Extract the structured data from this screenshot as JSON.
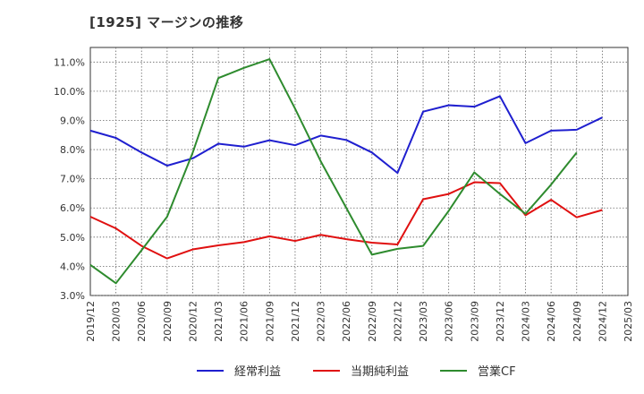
{
  "chart_data": {
    "type": "line",
    "title": "[1925]  マージンの推移",
    "x": [
      "2019/12",
      "2020/03",
      "2020/06",
      "2020/09",
      "2020/12",
      "2021/03",
      "2021/06",
      "2021/09",
      "2021/12",
      "2022/03",
      "2022/06",
      "2022/09",
      "2022/12",
      "2023/03",
      "2023/06",
      "2023/09",
      "2023/12",
      "2024/03",
      "2024/06",
      "2024/09",
      "2024/12",
      "2025/03"
    ],
    "y_ticks": [
      "3.0%",
      "4.0%",
      "5.0%",
      "6.0%",
      "7.0%",
      "8.0%",
      "9.0%",
      "10.0%",
      "11.0%"
    ],
    "ylim": [
      3.0,
      11.5
    ],
    "grid": true,
    "legend_position": "bottom",
    "series": [
      {
        "name": "経常利益",
        "color": "#1f1fcf",
        "values": [
          8.65,
          8.4,
          7.9,
          7.45,
          7.7,
          8.2,
          8.1,
          8.32,
          8.15,
          8.48,
          8.33,
          7.9,
          7.2,
          9.3,
          9.52,
          9.47,
          9.83,
          8.22,
          8.65,
          8.68,
          9.1,
          null
        ]
      },
      {
        "name": "当期純利益",
        "color": "#e01010",
        "values": [
          5.7,
          5.3,
          4.7,
          4.27,
          4.58,
          4.72,
          4.83,
          5.03,
          4.87,
          5.08,
          4.93,
          4.81,
          4.75,
          6.3,
          6.48,
          6.88,
          6.85,
          5.75,
          6.28,
          5.68,
          5.93,
          null
        ]
      },
      {
        "name": "営業CF",
        "color": "#2e8b2e",
        "values": [
          4.05,
          3.42,
          4.55,
          5.7,
          7.9,
          10.45,
          10.8,
          11.1,
          9.4,
          7.6,
          6.0,
          4.4,
          4.6,
          4.7,
          5.9,
          7.22,
          6.48,
          5.8,
          6.8,
          7.9,
          null,
          null
        ]
      }
    ]
  }
}
